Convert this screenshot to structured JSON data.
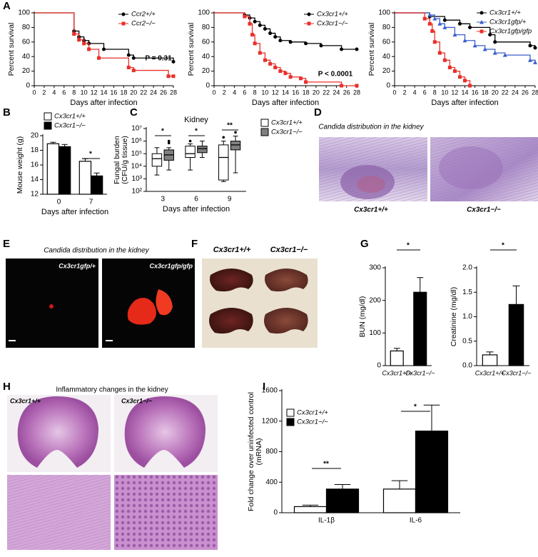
{
  "chart_data": [
    {
      "type": "line",
      "ylabel": "Percent survival",
      "xlabel": "Days after infection",
      "xlim": [
        0,
        28
      ],
      "xticks": [
        0,
        2,
        4,
        6,
        8,
        10,
        12,
        14,
        16,
        18,
        20,
        22,
        24,
        26,
        28
      ],
      "ylim": [
        0,
        100
      ],
      "yticks": [
        0,
        20,
        40,
        60,
        80,
        100
      ],
      "annotations": [
        "P = 0.31"
      ],
      "series": [
        {
          "name": "Ccr2+/+",
          "color": "#000000",
          "marker": "circle",
          "x": [
            0,
            8,
            9,
            10,
            11,
            14,
            19,
            20,
            28
          ],
          "values": [
            100,
            75,
            67,
            62,
            58,
            50,
            42,
            38,
            33
          ]
        },
        {
          "name": "Ccr2−/−",
          "color": "#e8302a",
          "marker": "square",
          "x": [
            0,
            8,
            9,
            10,
            11,
            13,
            19,
            20,
            27,
            28
          ],
          "values": [
            100,
            71,
            63,
            58,
            50,
            38,
            25,
            21,
            13,
            13
          ]
        }
      ]
    },
    {
      "type": "line",
      "ylabel": "Percent survival",
      "xlabel": "Days after infection",
      "xlim": [
        0,
        28
      ],
      "xticks": [
        0,
        2,
        4,
        6,
        8,
        10,
        12,
        14,
        16,
        18,
        20,
        22,
        24,
        26,
        28
      ],
      "ylim": [
        0,
        100
      ],
      "yticks": [
        0,
        20,
        40,
        60,
        80,
        100
      ],
      "annotations": [
        "P < 0.0001"
      ],
      "series": [
        {
          "name": "Cx3cr1+/+",
          "color": "#000000",
          "marker": "circle",
          "x": [
            0,
            6,
            7,
            8,
            9,
            10,
            11,
            12,
            13,
            15,
            18,
            21,
            25,
            28
          ],
          "values": [
            100,
            97,
            93,
            88,
            83,
            78,
            72,
            67,
            62,
            60,
            58,
            55,
            50,
            50
          ]
        },
        {
          "name": "Cx3cr1−/−",
          "color": "#e8302a",
          "marker": "square",
          "x": [
            0,
            6,
            7,
            7.5,
            8,
            9,
            10,
            11,
            12,
            13,
            14,
            15,
            17,
            18,
            25,
            28
          ],
          "values": [
            100,
            95,
            85,
            70,
            58,
            45,
            35,
            30,
            25,
            20,
            17,
            12,
            10,
            5,
            0,
            0
          ]
        }
      ]
    },
    {
      "type": "line",
      "ylabel": "Percent survival",
      "xlabel": "Days after infection",
      "xlim": [
        0,
        28
      ],
      "xticks": [
        0,
        2,
        4,
        6,
        8,
        10,
        12,
        14,
        16,
        18,
        20,
        22,
        24,
        26,
        28
      ],
      "ylim": [
        0,
        100
      ],
      "yticks": [
        0,
        20,
        40,
        60,
        80,
        100
      ],
      "series": [
        {
          "name": "Cx3cr1+/+",
          "color": "#000000",
          "marker": "circle",
          "x": [
            0,
            7,
            10,
            13,
            15,
            19,
            20,
            27,
            28
          ],
          "values": [
            100,
            95,
            90,
            85,
            80,
            70,
            60,
            55,
            52
          ]
        },
        {
          "name": "Cx3cr1gfp/+",
          "color": "#3a5fcd",
          "marker": "triangle",
          "x": [
            0,
            7,
            8,
            9,
            10,
            12,
            14,
            16,
            18,
            20,
            22,
            27,
            28
          ],
          "values": [
            100,
            97,
            92,
            85,
            80,
            70,
            62,
            55,
            50,
            45,
            42,
            35,
            32
          ]
        },
        {
          "name": "Cx3cr1gfp/gfp",
          "color": "#e8302a",
          "marker": "square",
          "x": [
            0,
            6,
            7,
            7.5,
            8,
            9,
            10,
            11,
            12,
            13,
            14,
            15
          ],
          "values": [
            100,
            92,
            85,
            75,
            60,
            45,
            35,
            25,
            20,
            12,
            7,
            0
          ]
        }
      ]
    },
    {
      "type": "bar",
      "ylabel": "Mouse weight (g)",
      "xlabel": "Days after infection",
      "categories": [
        "0",
        "7"
      ],
      "ylim": [
        12,
        20
      ],
      "yticks": [
        12,
        14,
        16,
        18,
        20
      ],
      "annotations": [
        "*"
      ],
      "series": [
        {
          "name": "Cx3cr1+/+",
          "color": "#ffffff",
          "values": [
            18.9,
            16.5
          ],
          "errors": [
            0.2,
            0.35
          ]
        },
        {
          "name": "Cx3cr1−/−",
          "color": "#000000",
          "values": [
            18.5,
            14.5
          ],
          "errors": [
            0.3,
            0.4
          ]
        }
      ]
    },
    {
      "type": "box",
      "title": "Kidney",
      "ylabel": [
        "Fungal burden",
        "(CFU/g tissue)"
      ],
      "xlabel": "Days after infection",
      "categories": [
        "3",
        "6",
        "9"
      ],
      "log": true,
      "ylim": [
        100,
        10000000
      ],
      "yticks": [
        {
          "value": 100,
          "label": "10²"
        },
        {
          "value": 1000,
          "label": "10³"
        },
        {
          "value": 10000,
          "label": "10⁴"
        },
        {
          "value": 100000,
          "label": "10⁵"
        },
        {
          "value": 1000000,
          "label": "10⁶"
        },
        {
          "value": 10000000,
          "label": "10⁷"
        }
      ],
      "annotations": [
        "*",
        "*",
        "**"
      ],
      "series": [
        {
          "name": "Cx3cr1+/+",
          "color": "#ffffff",
          "boxes": [
            {
              "whislo": 2000,
              "q1": 10000,
              "med": 40000,
              "q3": 100000,
              "whishi": 300000,
              "fliers": []
            },
            {
              "whislo": 5000,
              "q1": 50000,
              "med": 100000,
              "q3": 400000,
              "whishi": 600000,
              "fliers": [
                1000000
              ]
            },
            {
              "whislo": 600,
              "q1": 800,
              "med": 50000,
              "q3": 500000,
              "whishi": 1000000,
              "fliers": [
                2000000
              ]
            }
          ]
        },
        {
          "name": "Cx3cr1−/−",
          "color": "#808080",
          "boxes": [
            {
              "whislo": 5000,
              "q1": 30000,
              "med": 80000,
              "q3": 200000,
              "whishi": 300000,
              "fliers": [
                700000,
                1000000
              ]
            },
            {
              "whislo": 50000,
              "q1": 120000,
              "med": 250000,
              "q3": 400000,
              "whishi": 1000000,
              "fliers": []
            },
            {
              "whislo": 3000,
              "q1": 200000,
              "med": 500000,
              "q3": 1000000,
              "whishi": 2500000,
              "fliers": [
                5000000
              ]
            }
          ]
        }
      ]
    },
    {
      "type": "bar",
      "ylabel": "BUN (mg/dl)",
      "categories": [
        "Cx3cr1+/+",
        "Cx3cr1−/−"
      ],
      "values": [
        45,
        225
      ],
      "errors": [
        8,
        45
      ],
      "colors": [
        "#ffffff",
        "#000000"
      ],
      "ylim": [
        0,
        300
      ],
      "yticks": [
        0,
        100,
        200,
        300
      ],
      "annotations": [
        "*"
      ]
    },
    {
      "type": "bar",
      "ylabel": "Creatinine (mg/dl)",
      "categories": [
        "Cx3cr1+/+",
        "Cx3cr1−/−"
      ],
      "values": [
        0.22,
        1.25
      ],
      "errors": [
        0.06,
        0.38
      ],
      "colors": [
        "#ffffff",
        "#000000"
      ],
      "ylim": [
        0,
        2
      ],
      "yticks": [
        {
          "value": 0,
          "label": "0.0"
        },
        0.5,
        {
          "value": 1,
          "label": "1.0"
        },
        1.5,
        {
          "value": 2,
          "label": "2.0"
        }
      ],
      "annotations": [
        "*"
      ]
    },
    {
      "type": "bar",
      "ylabel": [
        "Fold change over uninfected control",
        "(mRNA)"
      ],
      "categories": [
        "IL-1β",
        "IL-6"
      ],
      "ylim": [
        0,
        1600
      ],
      "yticks": [
        0,
        400,
        800,
        1200,
        1600
      ],
      "annotations": [
        "**",
        "*"
      ],
      "series": [
        {
          "name": "Cx3cr1+/+",
          "color": "#ffffff",
          "values": [
            80,
            310
          ],
          "errors": [
            20,
            110
          ]
        },
        {
          "name": "Cx3cr1−/−",
          "color": "#000000",
          "values": [
            310,
            1070
          ],
          "errors": [
            60,
            340
          ]
        }
      ]
    }
  ],
  "figure": {
    "panels": [
      "A",
      "B",
      "C",
      "D",
      "E",
      "F",
      "G",
      "H",
      "I"
    ],
    "d_title": "Candida distribution in the kidney",
    "d_labels": [
      "Cx3cr1+/+",
      "Cx3cr1−/−"
    ],
    "e_title": "Candida distribution in the kidney",
    "e_labels": [
      "Cx3cr1gfp/+",
      "Cx3cr1gfp/gfp"
    ],
    "f_labels": [
      "Cx3cr1+/+",
      "Cx3cr1−/−"
    ],
    "h_title": "Inflammatory changes in the kidney",
    "h_labels": [
      "Cx3cr1+/+",
      "Cx3cr1−/−"
    ]
  }
}
